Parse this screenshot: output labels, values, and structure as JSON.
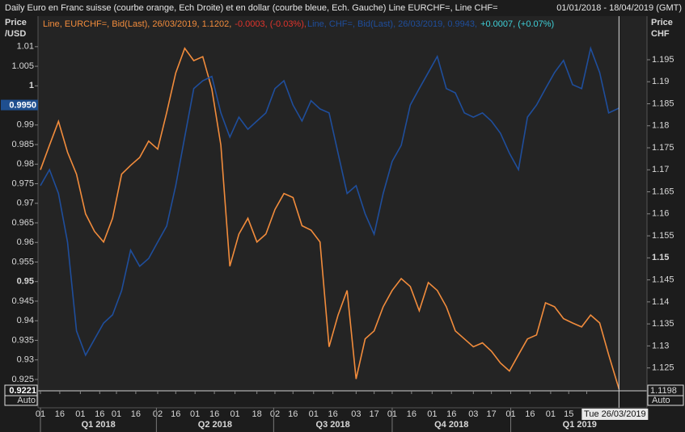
{
  "chart_data": {
    "type": "line",
    "title": "Daily Euro en Franc suisse (courbe orange, Ech Droite) et en dollar (courbe bleue, Ech. Gauche) Line EURCHF=, Line CHF=",
    "subtitle": "01/01/2018 - 18/04/2019 (GMT)",
    "y_label": [
      "Price",
      "/USD"
    ],
    "y2_label": [
      "Price",
      "CHF"
    ],
    "x": [
      "2018-01-01",
      "2018-01-08",
      "2018-01-15",
      "2018-01-22",
      "2018-01-29",
      "2018-02-05",
      "2018-02-12",
      "2018-02-19",
      "2018-02-26",
      "2018-03-05",
      "2018-03-12",
      "2018-03-19",
      "2018-03-26",
      "2018-04-02",
      "2018-04-09",
      "2018-04-16",
      "2018-04-23",
      "2018-04-30",
      "2018-05-07",
      "2018-05-14",
      "2018-05-21",
      "2018-05-28",
      "2018-06-04",
      "2018-06-11",
      "2018-06-18",
      "2018-06-25",
      "2018-07-02",
      "2018-07-09",
      "2018-07-16",
      "2018-07-23",
      "2018-07-30",
      "2018-08-06",
      "2018-08-13",
      "2018-08-20",
      "2018-08-27",
      "2018-09-03",
      "2018-09-10",
      "2018-09-17",
      "2018-09-24",
      "2018-10-01",
      "2018-10-08",
      "2018-10-15",
      "2018-10-22",
      "2018-10-29",
      "2018-11-05",
      "2018-11-12",
      "2018-11-19",
      "2018-11-26",
      "2018-12-03",
      "2018-12-10",
      "2018-12-17",
      "2018-12-24",
      "2018-12-31",
      "2019-01-07",
      "2019-01-14",
      "2019-01-21",
      "2019-01-28",
      "2019-02-04",
      "2019-02-11",
      "2019-02-18",
      "2019-02-25",
      "2019-03-04",
      "2019-03-11",
      "2019-03-18",
      "2019-03-26"
    ],
    "series": [
      {
        "name": "EURCHF",
        "legend": [
          "Line, EURCHF=, Bid(Last), 26/03/2019, 1.1202,",
          "-0.0003, (-0.03%),"
        ],
        "legend_colors": [
          "#f28c3c",
          "#e0342c"
        ],
        "color": "#f28c3c",
        "axis": "y2",
        "values": [
          1.17,
          1.1756,
          1.181,
          1.174,
          1.169,
          1.16,
          1.156,
          1.1536,
          1.159,
          1.169,
          1.171,
          1.1728,
          1.1765,
          1.1747,
          1.183,
          1.192,
          1.1976,
          1.1948,
          1.1957,
          1.1884,
          1.1756,
          1.1481,
          1.1554,
          1.159,
          1.1536,
          1.1554,
          1.161,
          1.1646,
          1.1637,
          1.1573,
          1.1563,
          1.1536,
          1.1298,
          1.137,
          1.1426,
          1.1225,
          1.1316,
          1.1334,
          1.1389,
          1.1426,
          1.1453,
          1.1435,
          1.138,
          1.1444,
          1.1426,
          1.1389,
          1.1334,
          1.1316,
          1.1298,
          1.1307,
          1.1288,
          1.1261,
          1.1243,
          1.128,
          1.1316,
          1.1325,
          1.1398,
          1.1389,
          1.1362,
          1.1352,
          1.1343,
          1.137,
          1.1352,
          1.128,
          1.1202
        ]
      },
      {
        "name": "CHF",
        "legend": [
          "Line, CHF=, Bid(Last), 26/03/2019, 0.9943,",
          "+0.0007, (+0.07%)"
        ],
        "legend_colors": [
          "#1f4e9c",
          "#3fd0d8"
        ],
        "color": "#1f4e9c",
        "axis": "y",
        "values": [
          0.9745,
          0.9786,
          0.9725,
          0.9601,
          0.9374,
          0.9312,
          0.9353,
          0.9394,
          0.9415,
          0.9477,
          0.958,
          0.9539,
          0.9559,
          0.9601,
          0.9642,
          0.9745,
          0.9869,
          0.9993,
          1.0013,
          1.0024,
          0.9931,
          0.9869,
          0.992,
          0.9889,
          0.991,
          0.9931,
          0.9993,
          1.0013,
          0.9951,
          0.991,
          0.9962,
          0.9941,
          0.9931,
          0.9828,
          0.9725,
          0.9745,
          0.9673,
          0.9621,
          0.9725,
          0.9807,
          0.9848,
          0.9951,
          0.9993,
          1.0034,
          1.0075,
          0.9993,
          0.9982,
          0.9931,
          0.992,
          0.9931,
          0.991,
          0.9879,
          0.9828,
          0.9786,
          0.992,
          0.9951,
          0.9993,
          1.0034,
          1.0065,
          1.0003,
          0.9993,
          1.0096,
          1.0034,
          0.9931,
          0.9943
        ]
      }
    ],
    "xlim": [
      "2018-01-01",
      "2019-04-18"
    ],
    "xticks": [
      {
        "value": "2018-01-01",
        "label": "01"
      },
      {
        "value": "2018-01-16",
        "label": "16"
      },
      {
        "value": "2018-02-01",
        "label": "01"
      },
      {
        "value": "2018-02-16",
        "label": "16"
      },
      {
        "value": "2018-03-01",
        "label": "01"
      },
      {
        "value": "2018-03-16",
        "label": "16"
      },
      {
        "value": "2018-04-02",
        "label": "02"
      },
      {
        "value": "2018-04-16",
        "label": "16"
      },
      {
        "value": "2018-05-01",
        "label": "01"
      },
      {
        "value": "2018-05-16",
        "label": "16"
      },
      {
        "value": "2018-06-01",
        "label": "01"
      },
      {
        "value": "2018-06-18",
        "label": "18"
      },
      {
        "value": "2018-07-02",
        "label": "02"
      },
      {
        "value": "2018-07-16",
        "label": "16"
      },
      {
        "value": "2018-08-01",
        "label": "01"
      },
      {
        "value": "2018-08-16",
        "label": "16"
      },
      {
        "value": "2018-09-03",
        "label": "03"
      },
      {
        "value": "2018-09-17",
        "label": "17"
      },
      {
        "value": "2018-10-01",
        "label": "01"
      },
      {
        "value": "2018-10-16",
        "label": "16"
      },
      {
        "value": "2018-11-01",
        "label": "01"
      },
      {
        "value": "2018-11-16",
        "label": "16"
      },
      {
        "value": "2018-12-03",
        "label": "03"
      },
      {
        "value": "2018-12-17",
        "label": "17"
      },
      {
        "value": "2019-01-01",
        "label": "01"
      },
      {
        "value": "2019-01-16",
        "label": "16"
      },
      {
        "value": "2019-02-01",
        "label": "01"
      },
      {
        "value": "2019-02-15",
        "label": "15"
      },
      {
        "value": "2019-03-01",
        "label": "01"
      }
    ],
    "quarters": [
      {
        "start": "2018-01-01",
        "label": "Q1 2018"
      },
      {
        "start": "2018-04-01",
        "label": "Q2 2018"
      },
      {
        "start": "2018-07-01",
        "label": "Q3 2018"
      },
      {
        "start": "2018-10-01",
        "label": "Q4 2018"
      },
      {
        "start": "2019-01-01",
        "label": "Q1 2019"
      }
    ],
    "ylim": [
      0.9221,
      1.0178
    ],
    "yticks": [
      1.01,
      1.005,
      1,
      0.99,
      0.985,
      0.98,
      0.975,
      0.97,
      0.965,
      0.96,
      0.955,
      0.95,
      0.945,
      0.94,
      0.935,
      0.93,
      0.925
    ],
    "y2lim": [
      1.1198,
      1.2049
    ],
    "y2ticks": [
      1.195,
      1.19,
      1.185,
      1.18,
      1.175,
      1.17,
      1.165,
      1.16,
      1.155,
      1.15,
      1.145,
      1.14,
      1.135,
      1.13,
      1.125
    ],
    "y_markers": [
      {
        "value": 0.995,
        "label": "0.9950"
      },
      {
        "value": 0.9221,
        "label": "0.9221"
      }
    ],
    "y2_markers": [
      {
        "value": 1.1198,
        "label": "1.1198"
      }
    ],
    "scale_mode": "Auto",
    "cursor": {
      "date": "2019-03-26",
      "label": "Tue 26/03/2019"
    }
  }
}
